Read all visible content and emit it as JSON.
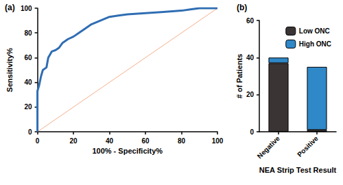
{
  "chart_data": [
    {
      "type": "line",
      "title": "(a)",
      "x_label": "100% - Specificity%",
      "y_label": "Sensitivity%",
      "xlim": [
        0,
        100
      ],
      "xticks": [
        0,
        20,
        40,
        60,
        80,
        100
      ],
      "ylim": [
        0,
        100
      ],
      "yticks": [
        0,
        20,
        40,
        60,
        80,
        100
      ],
      "grid": false,
      "series": [
        {
          "color": "#2f6db3",
          "line_style": "solid",
          "marker": "none",
          "x": [
            0,
            0,
            1,
            2,
            3,
            5,
            6,
            8,
            10,
            12,
            14,
            17,
            20,
            23,
            27,
            30,
            35,
            40,
            45,
            50,
            60,
            70,
            80,
            85,
            90,
            100
          ],
          "values": [
            0,
            33,
            38,
            45,
            50,
            52,
            60,
            65,
            66,
            68,
            72,
            75,
            77,
            80,
            84,
            87,
            90,
            93,
            94,
            95,
            96,
            97,
            98,
            99,
            100,
            100
          ]
        },
        {
          "color": "#f4ae8a",
          "line_style": "solid",
          "marker": "none",
          "x": [
            0,
            100
          ],
          "values": [
            0,
            100
          ]
        }
      ]
    },
    {
      "type": "bar",
      "title": "(b)",
      "stacked": true,
      "legend": "upper right",
      "x_label": "NEA Strip Test Result",
      "y_label": "# of Patients",
      "categories": [
        "Negative",
        "Positive"
      ],
      "ylim": [
        0,
        60
      ],
      "yticks": [
        0,
        20,
        40,
        60
      ],
      "grid": false,
      "series": [
        {
          "name": "Low ONC",
          "color": "#3b3434",
          "values": [
            37,
            1
          ]
        },
        {
          "name": "High ONC",
          "color": "#2f88c8",
          "values": [
            3,
            34
          ]
        }
      ]
    }
  ]
}
